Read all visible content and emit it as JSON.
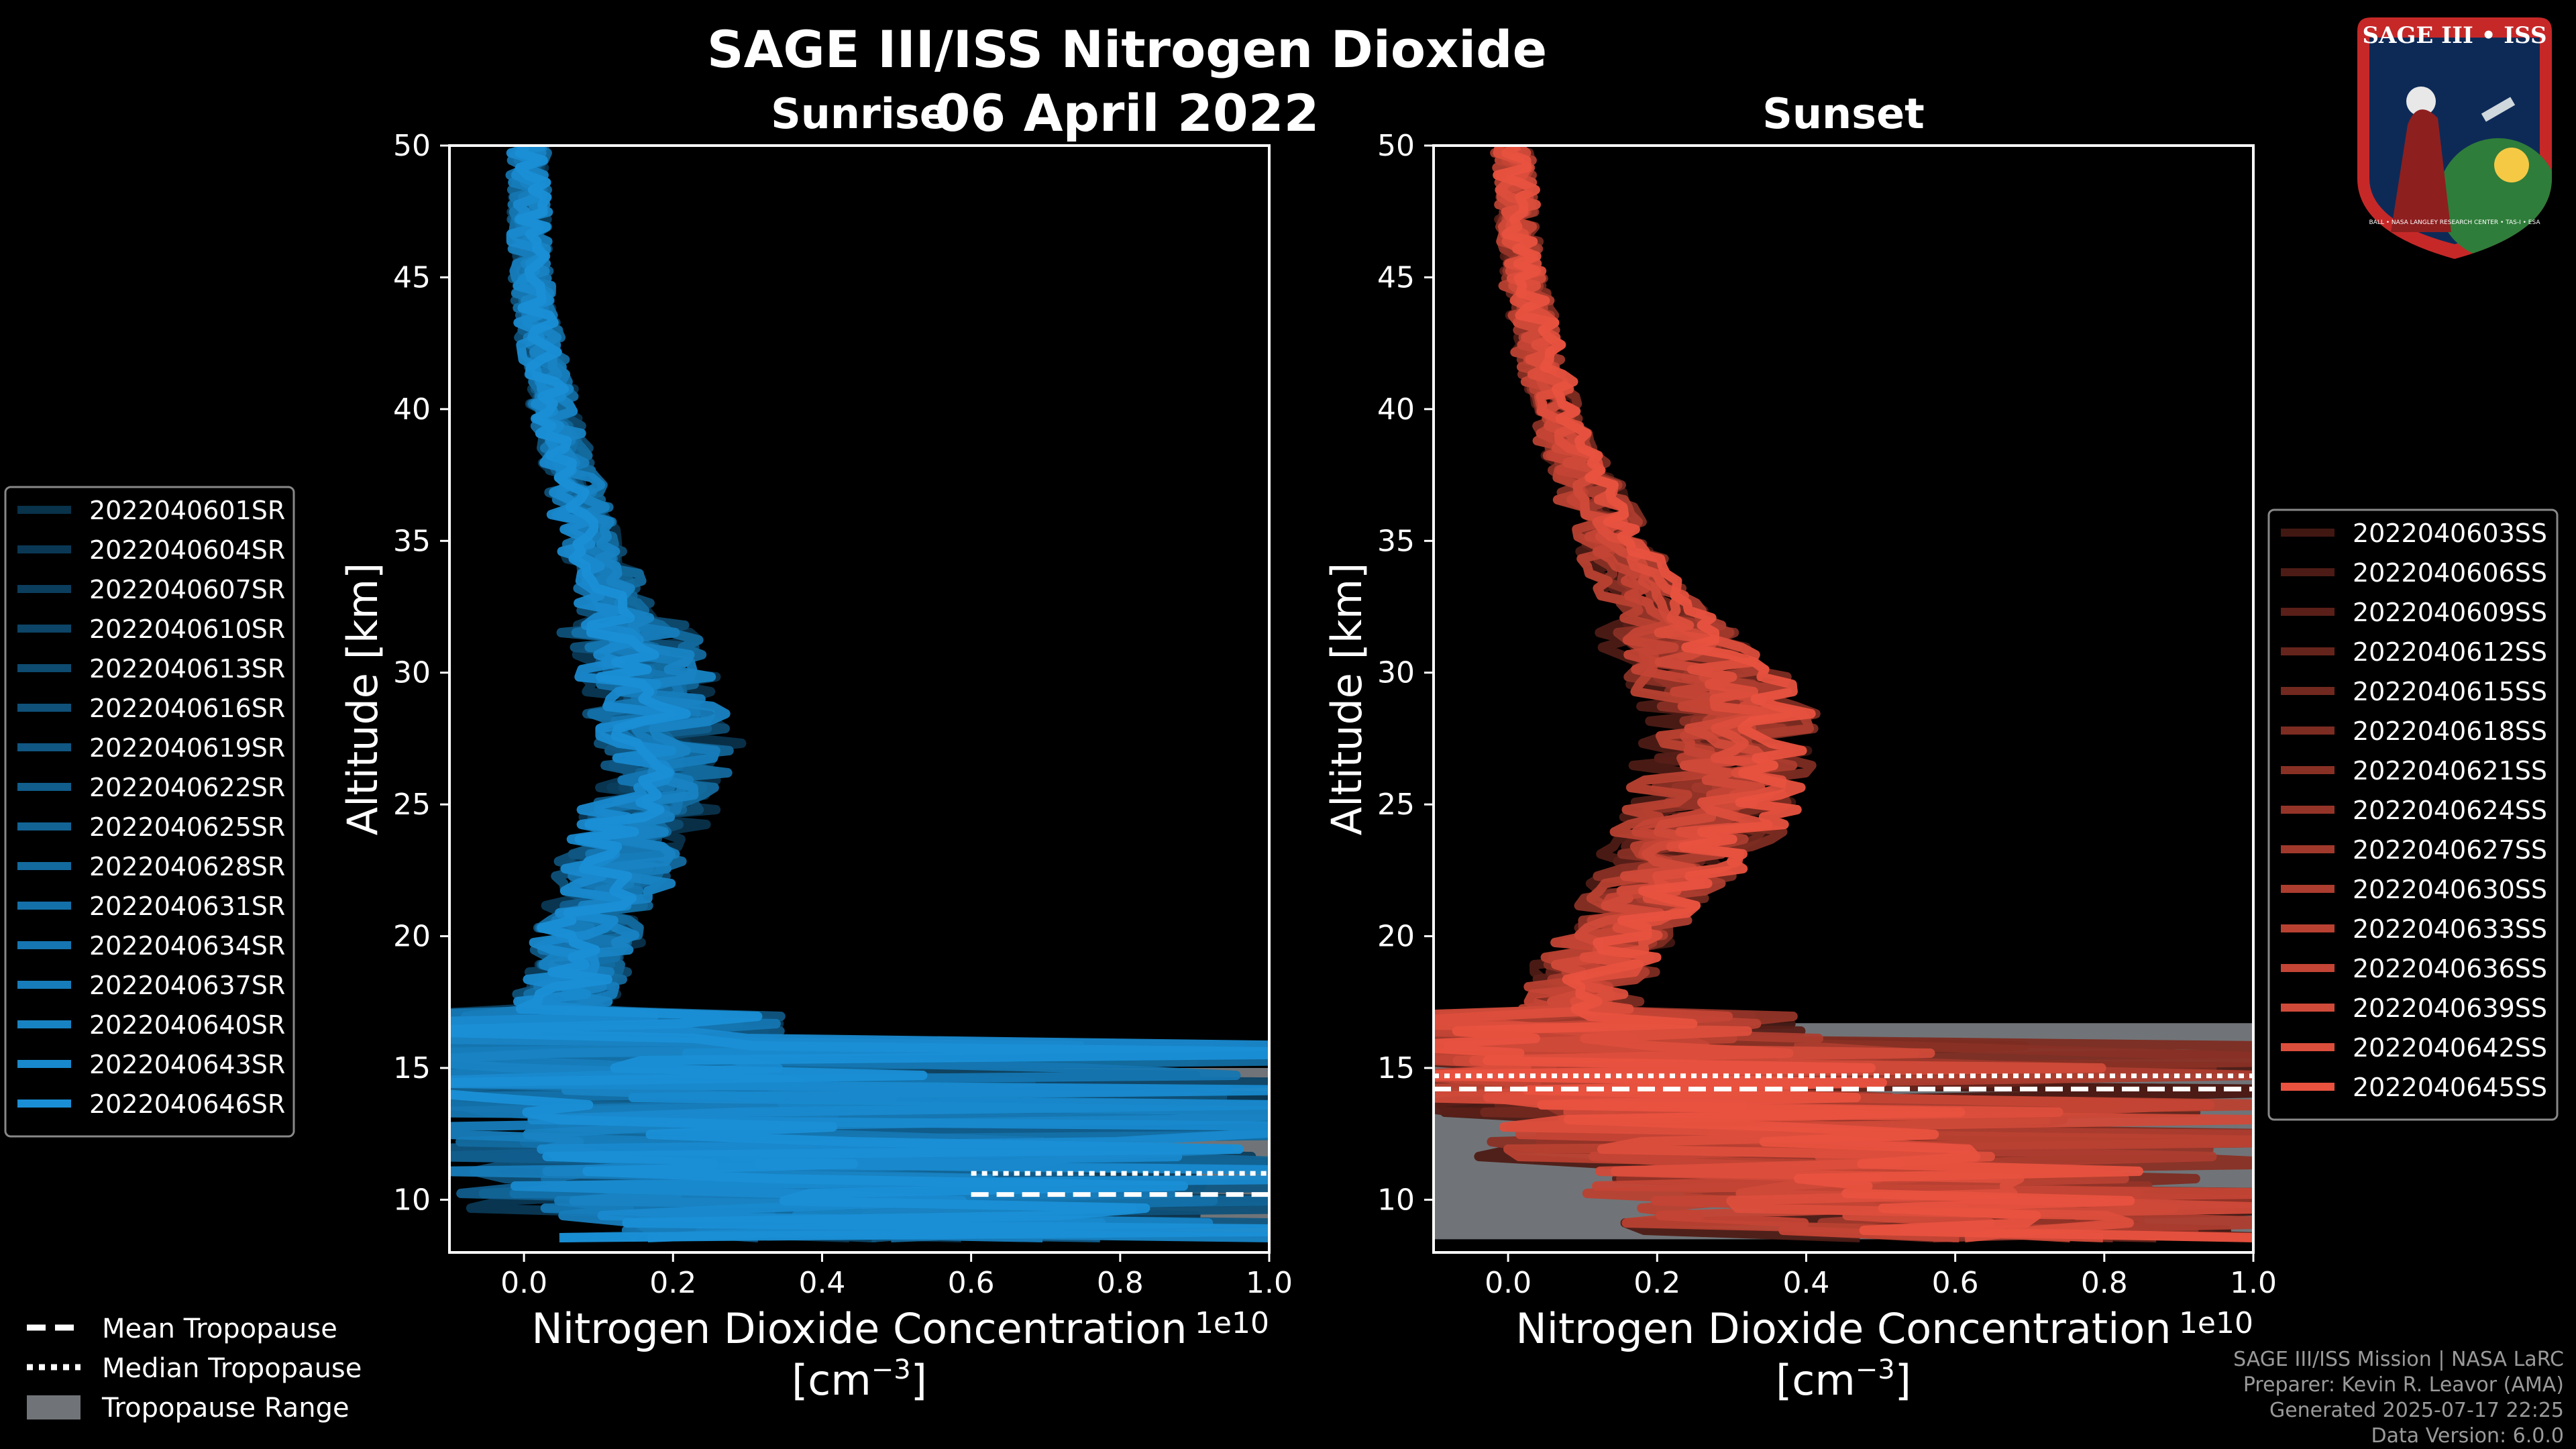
{
  "title": "SAGE III/ISS Nitrogen Dioxide",
  "date": "06 April 2022",
  "logo": {
    "text": "SAGE III • ISS",
    "caption": "BALL • NASA LANGLEY RESEARCH CENTER • TAS-I • ESA"
  },
  "chart_data": [
    {
      "type": "line",
      "title": "Sunrise",
      "xlabel": "Nitrogen Dioxide Concentration",
      "xunit": "[cm$^{-3}$]",
      "ylabel": "Altitude [km]",
      "xlim": [
        -0.1,
        1.0
      ],
      "ylim": [
        8,
        50
      ],
      "x_scale_label": "1e10",
      "x_ticks": [
        "0.0",
        "0.2",
        "0.4",
        "0.6",
        "0.8",
        "1.0"
      ],
      "y_ticks": [
        "10",
        "15",
        "20",
        "25",
        "30",
        "35",
        "40",
        "45",
        "50"
      ],
      "series_color": "#1a8fd6",
      "series_names": [
        "2022040601SR",
        "2022040604SR",
        "2022040607SR",
        "2022040610SR",
        "2022040613SR",
        "2022040616SR",
        "2022040619SR",
        "2022040622SR",
        "2022040625SR",
        "2022040628SR",
        "2022040631SR",
        "2022040634SR",
        "2022040637SR",
        "2022040640SR",
        "2022040643SR",
        "2022040646SR"
      ],
      "mean_profile": {
        "altitude": [
          50,
          45,
          40,
          35,
          30,
          27,
          25,
          22,
          20,
          18,
          17,
          16,
          15,
          14,
          13,
          12,
          11,
          10,
          9
        ],
        "value": [
          0.005,
          0.01,
          0.04,
          0.09,
          0.17,
          0.2,
          0.17,
          0.12,
          0.09,
          0.06,
          0.05,
          0.06,
          0.08,
          0.1,
          0.12,
          0.14,
          0.18,
          0.22,
          0.28
        ]
      },
      "tropopause": {
        "mean": 10.2,
        "median": 11.0,
        "range": [
          8.5,
          15.0
        ]
      }
    },
    {
      "type": "line",
      "title": "Sunset",
      "xlabel": "Nitrogen Dioxide Concentration",
      "xunit": "[cm$^{-3}$]",
      "ylabel": "Altitude [km]",
      "xlim": [
        -0.1,
        1.0
      ],
      "ylim": [
        8,
        50
      ],
      "x_scale_label": "1e10",
      "x_ticks": [
        "0.0",
        "0.2",
        "0.4",
        "0.6",
        "0.8",
        "1.0"
      ],
      "y_ticks": [
        "10",
        "15",
        "20",
        "25",
        "30",
        "35",
        "40",
        "45",
        "50"
      ],
      "series_color": "#e8523f",
      "series_names": [
        "2022040603SS",
        "2022040606SS",
        "2022040609SS",
        "2022040612SS",
        "2022040615SS",
        "2022040618SS",
        "2022040621SS",
        "2022040624SS",
        "2022040627SS",
        "2022040630SS",
        "2022040633SS",
        "2022040636SS",
        "2022040639SS",
        "2022040642SS",
        "2022040645SS"
      ],
      "mean_profile": {
        "altitude": [
          50,
          45,
          40,
          35,
          30,
          28,
          25,
          22,
          20,
          18,
          17,
          16,
          15,
          14,
          13,
          12,
          11,
          10,
          9
        ],
        "value": [
          0.005,
          0.02,
          0.06,
          0.14,
          0.26,
          0.3,
          0.28,
          0.2,
          0.14,
          0.1,
          0.09,
          0.1,
          0.12,
          0.16,
          0.22,
          0.3,
          0.4,
          0.5,
          0.6
        ]
      },
      "tropopause": {
        "mean": 14.2,
        "median": 14.7,
        "range": [
          8.5,
          16.7
        ]
      }
    }
  ],
  "legend_tropopause": {
    "mean": "Mean Tropopause",
    "median": "Median Tropopause",
    "range": "Tropopause Range"
  },
  "footer": [
    "SAGE III/ISS Mission | NASA LaRC",
    "Preparer: Kevin R. Leavor (AMA)",
    "Generated 2025-07-17 22:25",
    "Data Version: 6.0.0"
  ]
}
